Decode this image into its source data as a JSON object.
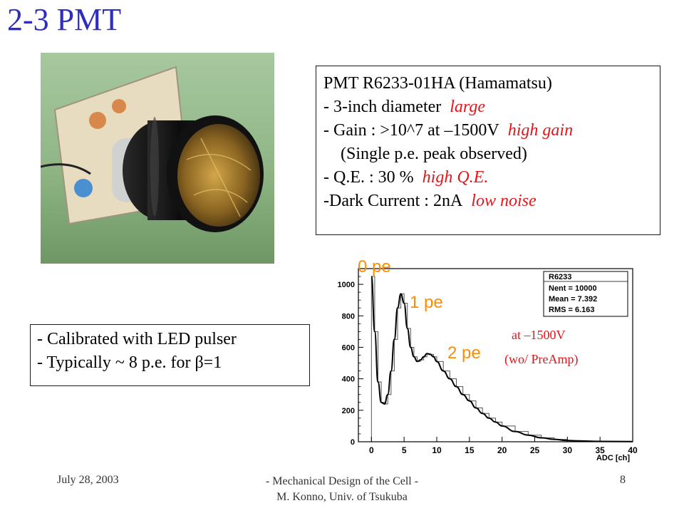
{
  "slide": {
    "title": "2-3 PMT",
    "specs": {
      "line1": "PMT R6233-01HA (Hamamatsu)",
      "line2_text": "- 3-inch diameter",
      "line2_hl": "large",
      "line3_text": "- Gain : >10^7 at –1500V",
      "line3_hl": "high gain",
      "line4": "(Single p.e. peak observed)",
      "line5_text": "- Q.E. : 30 %",
      "line5_hl": "high Q.E.",
      "line6_text": "-Dark Current : 2nA",
      "line6_hl": "low noise"
    },
    "calibration": {
      "line1": "- Calibrated with LED pulser",
      "line2": "- Typically ~ 8 p.e. for β=1"
    },
    "annotations": {
      "pe0": "0 pe",
      "pe1": "1 pe",
      "pe2": "2 pe",
      "voltage": "at –1500V",
      "preamp": "(wo/ PreAmp)"
    },
    "footer": {
      "date": "July 28, 2003",
      "center1": "- Mechanical Design of the Cell -",
      "center2": "M. Konno, Univ. of Tsukuba",
      "page": "8"
    }
  },
  "chart_data": {
    "type": "line",
    "x": [
      0,
      0.5,
      1,
      1.5,
      2,
      2.5,
      3,
      3.5,
      4,
      4.5,
      5,
      5.5,
      6,
      6.5,
      7,
      7.5,
      8,
      8.5,
      9,
      9.5,
      10,
      11,
      12,
      13,
      14,
      15,
      16,
      17,
      18,
      19,
      20,
      22,
      24,
      26,
      28,
      30,
      32,
      35,
      40
    ],
    "series": [
      {
        "values": [
          1050,
          700,
          380,
          250,
          240,
          300,
          450,
          650,
          850,
          940,
          880,
          720,
          600,
          540,
          510,
          520,
          540,
          560,
          555,
          540,
          510,
          450,
          400,
          350,
          300,
          260,
          215,
          180,
          150,
          125,
          100,
          65,
          42,
          25,
          15,
          8,
          5,
          2,
          1
        ]
      }
    ],
    "xlabel": "ADC [ch]",
    "xlim": [
      -2,
      40
    ],
    "ylim": [
      0,
      1100
    ],
    "xticks": [
      0,
      5,
      10,
      15,
      20,
      25,
      30,
      35,
      40
    ],
    "yticks": [
      0,
      200,
      400,
      600,
      800,
      1000
    ],
    "stats_box": {
      "name": "R6233",
      "nent": "Nent = 10000",
      "mean": "Mean = 7.392",
      "rms": "RMS = 6.163"
    }
  }
}
